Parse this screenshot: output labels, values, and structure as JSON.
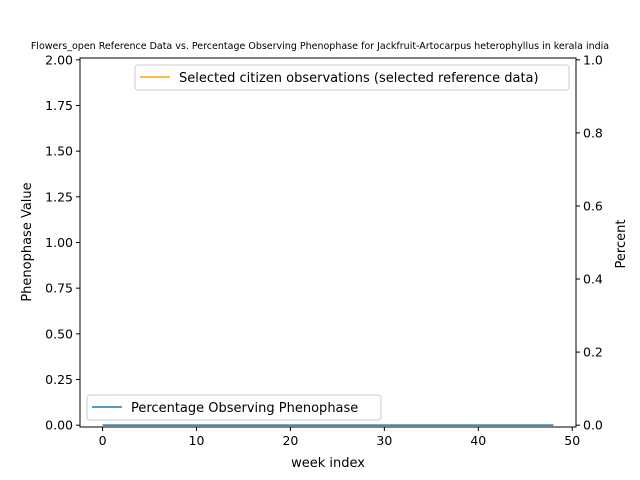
{
  "chart_data": {
    "type": "line",
    "title": "Flowers_open Reference Data vs. Percentage Observing Phenophase for Jackfruit-Artocarpus heterophyllus in kerala india",
    "xlabel": "week index",
    "ylabel_left": "Phenophase Value",
    "ylabel_right": "Percent",
    "xlim": [
      -2.4,
      50.4
    ],
    "ylim_left": [
      -0.01,
      2.01
    ],
    "ylim_right": [
      -0.005,
      1.005
    ],
    "x_ticks": [
      "0",
      "10",
      "20",
      "30",
      "40",
      "50"
    ],
    "y_left_ticks": [
      "0.00",
      "0.25",
      "0.50",
      "0.75",
      "1.00",
      "1.25",
      "1.50",
      "1.75",
      "2.00"
    ],
    "y_right_ticks": [
      "0.0",
      "0.2",
      "0.4",
      "0.6",
      "0.8",
      "1.0"
    ],
    "grid": false,
    "series": [
      {
        "name": "Percentage Observing Phenophase",
        "axis": "left",
        "color": "#1f77b4",
        "x": [
          0,
          48
        ],
        "y": [
          0,
          0
        ]
      },
      {
        "name": "Selected citizen observations (selected reference data)",
        "axis": "right",
        "color": "#ffa500",
        "x": [],
        "y": []
      }
    ],
    "legends": [
      {
        "placement": "top-right",
        "entries": [
          "Selected citizen observations (selected reference data)"
        ]
      },
      {
        "placement": "bottom-left",
        "entries": [
          "Percentage Observing Phenophase"
        ]
      }
    ]
  }
}
